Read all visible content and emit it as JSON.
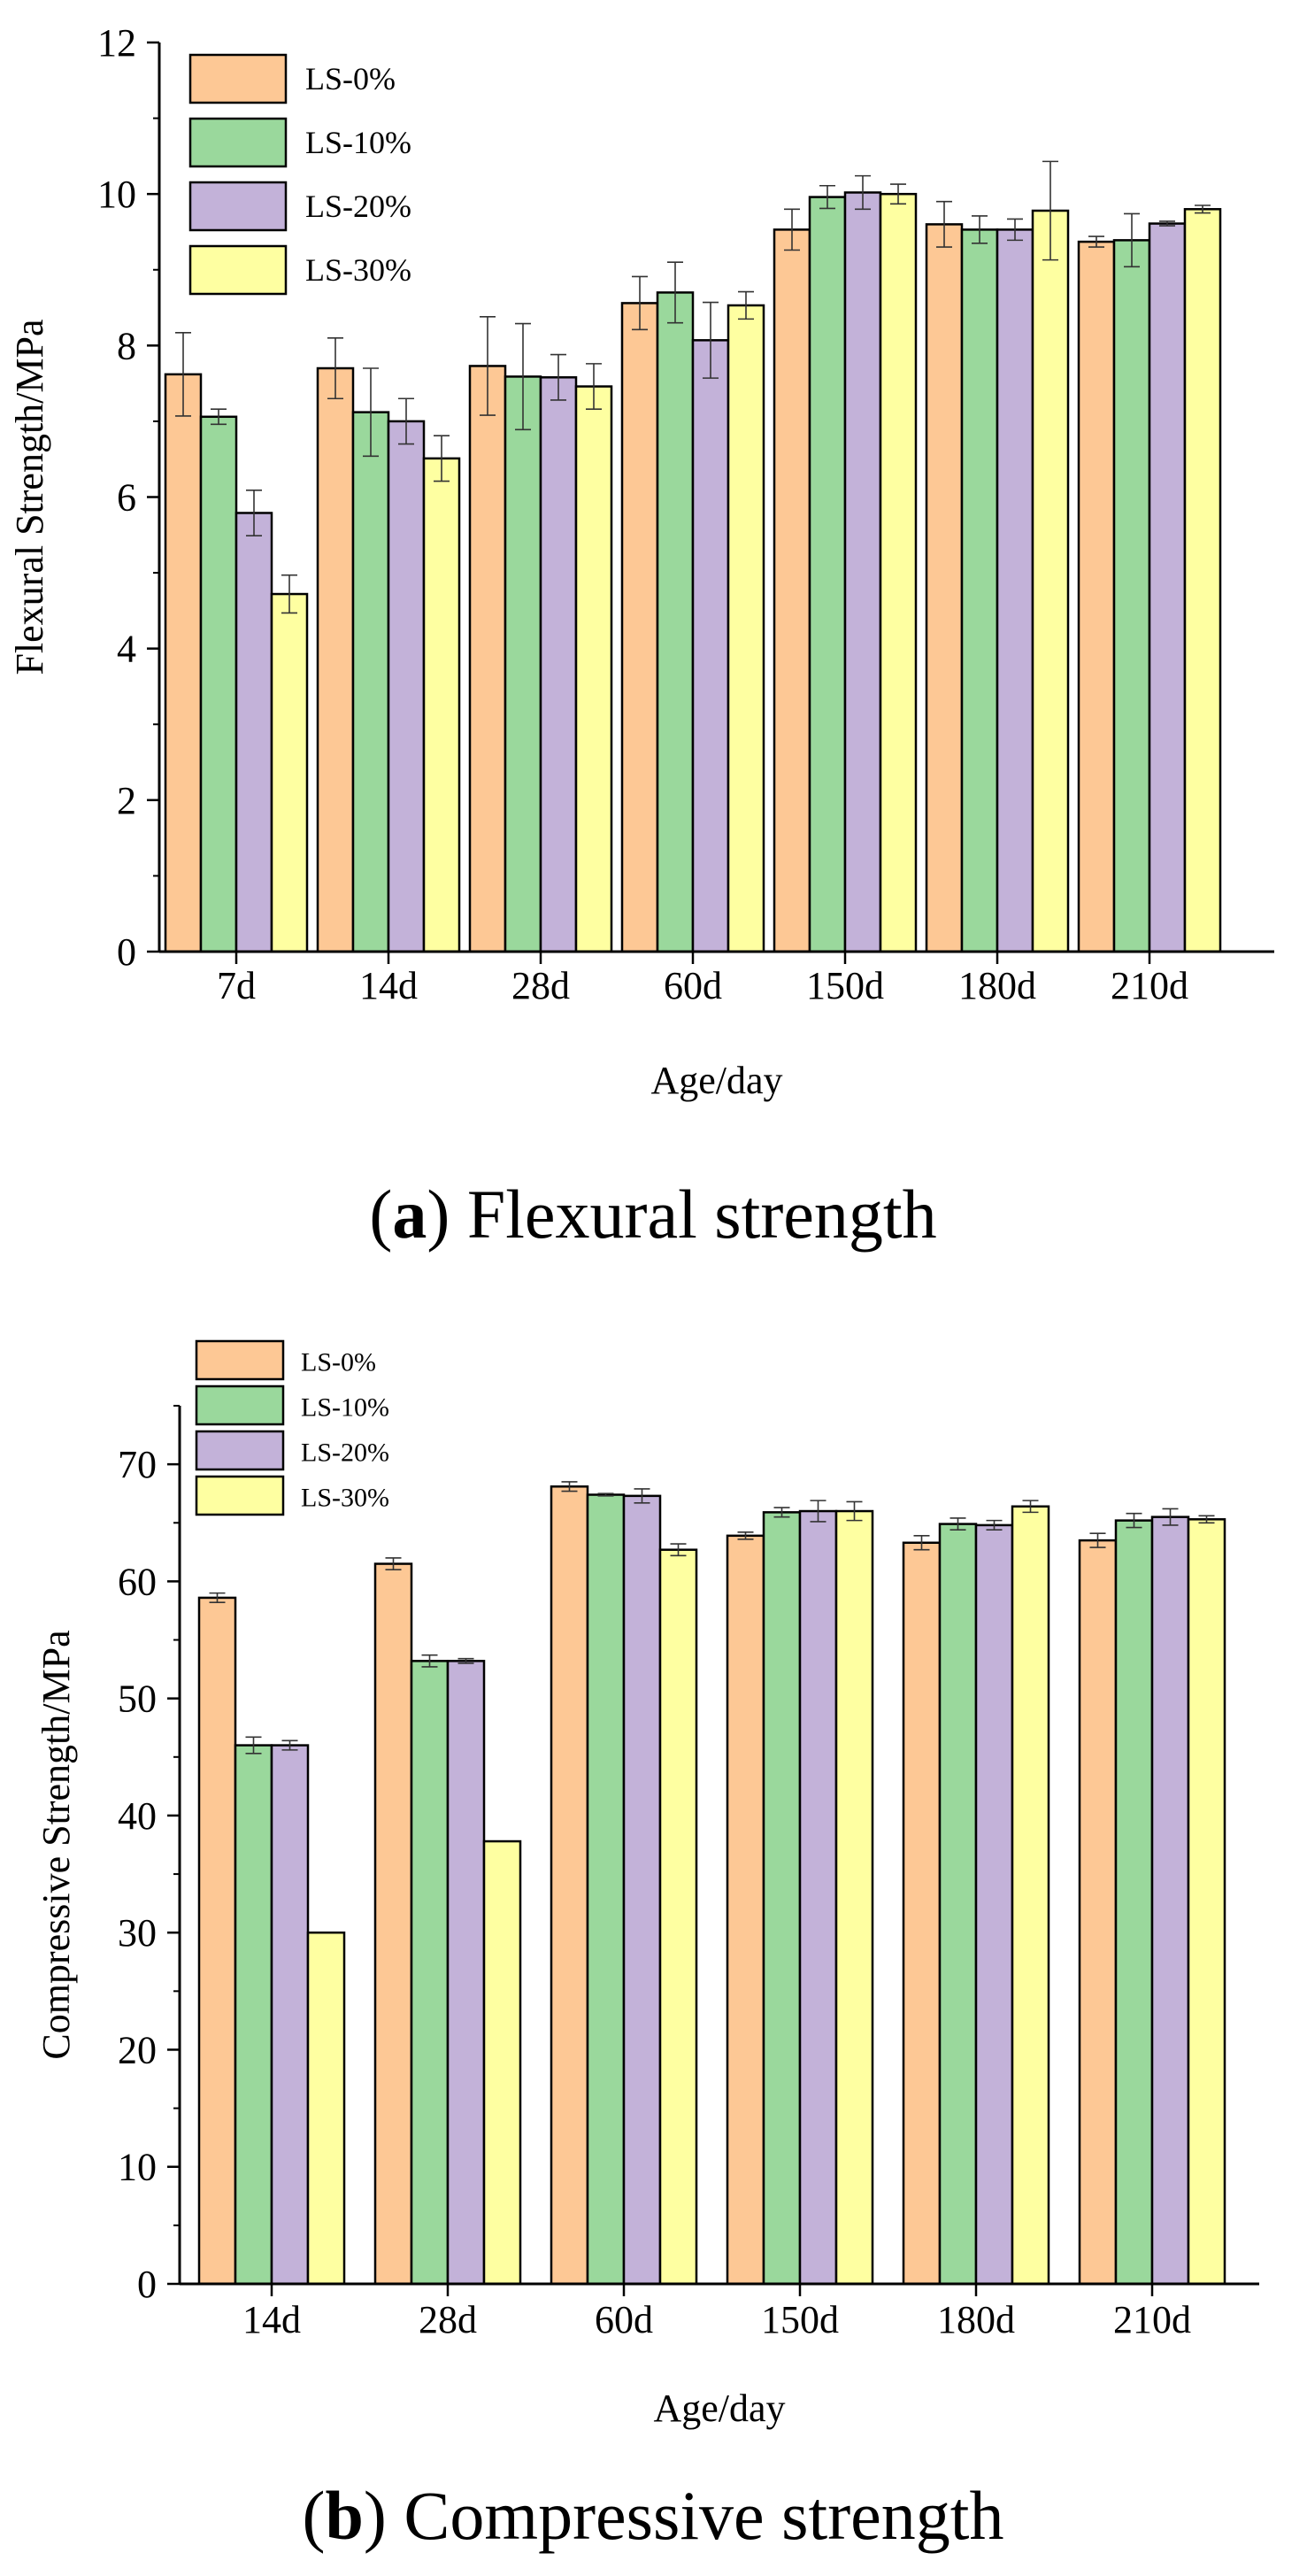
{
  "chart_data": [
    {
      "type": "bar",
      "title": "",
      "xlabel": "Age/day",
      "ylabel": "Flexural Strength/MPa",
      "categories": [
        "7d",
        "14d",
        "28d",
        "60d",
        "150d",
        "180d",
        "210d"
      ],
      "ylim": [
        0,
        12
      ],
      "yticks": [
        0,
        2,
        4,
        6,
        8,
        10,
        12
      ],
      "grid": false,
      "legend_position": "top-left",
      "series": [
        {
          "name": "LS-0%",
          "color": "#FDC895",
          "values": [
            7.62,
            7.7,
            7.73,
            8.56,
            9.53,
            9.6,
            9.37
          ],
          "errors": [
            0.55,
            0.4,
            0.65,
            0.35,
            0.27,
            0.3,
            0.07
          ]
        },
        {
          "name": "LS-10%",
          "color": "#9AD89C",
          "values": [
            7.06,
            7.12,
            7.59,
            8.7,
            9.96,
            9.53,
            9.39
          ],
          "errors": [
            0.1,
            0.58,
            0.7,
            0.4,
            0.15,
            0.18,
            0.35
          ]
        },
        {
          "name": "LS-20%",
          "color": "#C3B2D9",
          "values": [
            5.79,
            7.0,
            7.58,
            8.07,
            10.02,
            9.53,
            9.61
          ],
          "errors": [
            0.3,
            0.3,
            0.3,
            0.5,
            0.22,
            0.14,
            0.03
          ]
        },
        {
          "name": "LS-30%",
          "color": "#FEFFA1",
          "values": [
            4.72,
            6.51,
            7.46,
            8.53,
            10.0,
            9.78,
            9.8
          ],
          "errors": [
            0.25,
            0.3,
            0.3,
            0.18,
            0.13,
            0.65,
            0.05
          ]
        }
      ]
    },
    {
      "type": "bar",
      "title": "",
      "xlabel": "Age/day",
      "ylabel": "Compressive Strength/MPa",
      "categories": [
        "14d",
        "28d",
        "60d",
        "150d",
        "180d",
        "210d"
      ],
      "ylim": [
        0,
        75
      ],
      "yticks": [
        0,
        10,
        20,
        30,
        40,
        50,
        60,
        70
      ],
      "grid": false,
      "legend_position": "top-left",
      "series": [
        {
          "name": "LS-0%",
          "color": "#FDC895",
          "values": [
            58.6,
            61.5,
            68.1,
            63.9,
            63.3,
            63.5
          ],
          "errors": [
            0.4,
            0.5,
            0.4,
            0.3,
            0.6,
            0.6
          ]
        },
        {
          "name": "LS-10%",
          "color": "#9AD89C",
          "values": [
            46.0,
            53.2,
            67.4,
            65.9,
            64.9,
            65.2
          ],
          "errors": [
            0.7,
            0.5,
            0.1,
            0.4,
            0.5,
            0.6
          ]
        },
        {
          "name": "LS-20%",
          "color": "#C3B2D9",
          "values": [
            46.0,
            53.2,
            67.3,
            66.0,
            64.8,
            65.5
          ],
          "errors": [
            0.4,
            0.2,
            0.6,
            0.9,
            0.4,
            0.7
          ]
        },
        {
          "name": "LS-30%",
          "color": "#FEFFA1",
          "values": [
            30.0,
            37.8,
            62.7,
            66.0,
            66.4,
            65.3
          ],
          "errors": [
            0.0,
            0.0,
            0.5,
            0.8,
            0.5,
            0.3
          ]
        }
      ]
    }
  ],
  "captions": {
    "a": {
      "letter": "a",
      "text": " Flexural strength"
    },
    "b": {
      "letter": "b",
      "text": " Compressive strength"
    }
  }
}
